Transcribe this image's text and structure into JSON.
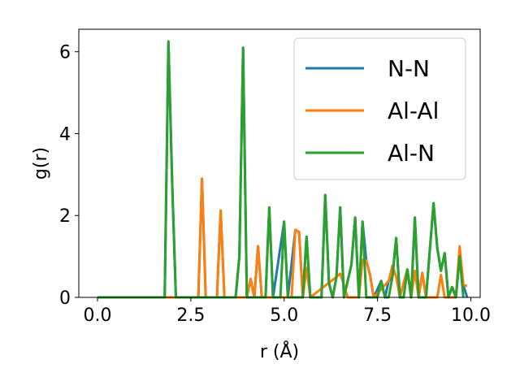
{
  "chart_data": {
    "type": "line",
    "xlabel": "r (Å)",
    "ylabel": "g(r)",
    "xlim": [
      -0.5,
      10.25
    ],
    "ylim": [
      0,
      6.55
    ],
    "xticks": [
      0.0,
      2.5,
      5.0,
      7.5,
      10.0
    ],
    "xtick_labels": [
      "0.0",
      "2.5",
      "5.0",
      "7.5",
      "10.0"
    ],
    "yticks": [
      0,
      2,
      4,
      6
    ],
    "ytick_labels": [
      "0",
      "2",
      "4",
      "6"
    ],
    "grid": false,
    "legend_position": "top-right",
    "series": [
      {
        "name": "N-N",
        "color": "#1f77b4",
        "points": [
          [
            0.0,
            0
          ],
          [
            1.8,
            0
          ],
          [
            1.9,
            6.25
          ],
          [
            2.0,
            2.8
          ],
          [
            2.1,
            0
          ],
          [
            2.7,
            0
          ],
          [
            2.8,
            2.9
          ],
          [
            2.9,
            0
          ],
          [
            3.2,
            0
          ],
          [
            3.3,
            2.12
          ],
          [
            3.4,
            0
          ],
          [
            3.7,
            0
          ],
          [
            3.8,
            1.0
          ],
          [
            3.9,
            6.1
          ],
          [
            4.0,
            0
          ],
          [
            4.1,
            0.45
          ],
          [
            4.2,
            0
          ],
          [
            4.3,
            1.25
          ],
          [
            4.4,
            0
          ],
          [
            4.5,
            0
          ],
          [
            4.6,
            2.2
          ],
          [
            4.7,
            0
          ],
          [
            5.0,
            1.85
          ],
          [
            5.1,
            0
          ],
          [
            5.3,
            1.65
          ],
          [
            5.4,
            1.6
          ],
          [
            5.5,
            0
          ],
          [
            5.6,
            1.48
          ],
          [
            5.7,
            0
          ],
          [
            6.0,
            0
          ],
          [
            6.1,
            2.5
          ],
          [
            6.2,
            0.35
          ],
          [
            6.3,
            0
          ],
          [
            6.4,
            0.5
          ],
          [
            6.5,
            2.2
          ],
          [
            6.6,
            0
          ],
          [
            6.8,
            0.8
          ],
          [
            6.9,
            1.95
          ],
          [
            7.0,
            0
          ],
          [
            7.1,
            1.85
          ],
          [
            7.2,
            0.9
          ],
          [
            7.3,
            0.55
          ],
          [
            7.4,
            0
          ],
          [
            7.6,
            0.4
          ],
          [
            7.7,
            0
          ],
          [
            7.8,
            0.4
          ],
          [
            7.9,
            0.5
          ],
          [
            8.0,
            1.45
          ],
          [
            8.1,
            0
          ],
          [
            8.2,
            0.35
          ],
          [
            8.3,
            0.68
          ],
          [
            8.4,
            0
          ],
          [
            8.5,
            1.95
          ],
          [
            8.6,
            0
          ],
          [
            8.7,
            0.6
          ],
          [
            8.8,
            0
          ],
          [
            9.0,
            2.3
          ],
          [
            9.1,
            1.2
          ],
          [
            9.2,
            0.65
          ],
          [
            9.3,
            1.08
          ],
          [
            9.4,
            0
          ],
          [
            9.5,
            0.25
          ],
          [
            9.6,
            0
          ],
          [
            9.7,
            1.0
          ],
          [
            9.8,
            0.3
          ],
          [
            9.9,
            0
          ]
        ]
      },
      {
        "name": "Al-Al",
        "color": "#ff7f0e",
        "points": [
          [
            0.0,
            0
          ],
          [
            2.7,
            0
          ],
          [
            2.8,
            2.9
          ],
          [
            2.9,
            0
          ],
          [
            3.2,
            0
          ],
          [
            3.3,
            2.12
          ],
          [
            3.4,
            0
          ],
          [
            4.0,
            0
          ],
          [
            4.1,
            0.45
          ],
          [
            4.2,
            0
          ],
          [
            4.3,
            1.25
          ],
          [
            4.4,
            0
          ],
          [
            5.2,
            0
          ],
          [
            5.3,
            1.65
          ],
          [
            5.4,
            1.6
          ],
          [
            5.5,
            0
          ],
          [
            5.6,
            0.72
          ],
          [
            5.7,
            0
          ],
          [
            6.4,
            0.5
          ],
          [
            6.5,
            0.58
          ],
          [
            6.6,
            0.3
          ],
          [
            6.7,
            0
          ],
          [
            7.0,
            0
          ],
          [
            7.1,
            0.92
          ],
          [
            7.2,
            0.9
          ],
          [
            7.3,
            0.55
          ],
          [
            7.4,
            0
          ],
          [
            7.8,
            0.4
          ],
          [
            7.9,
            0.78
          ],
          [
            8.0,
            0.5
          ],
          [
            8.1,
            0
          ],
          [
            8.2,
            0.35
          ],
          [
            8.3,
            0.68
          ],
          [
            8.4,
            0
          ],
          [
            8.5,
            0.65
          ],
          [
            8.6,
            0
          ],
          [
            8.7,
            0.6
          ],
          [
            8.8,
            0
          ],
          [
            9.1,
            0
          ],
          [
            9.2,
            0.55
          ],
          [
            9.3,
            0
          ],
          [
            9.6,
            0
          ],
          [
            9.7,
            1.25
          ],
          [
            9.8,
            0.3
          ],
          [
            9.9,
            0.28
          ]
        ]
      },
      {
        "name": "Al-N",
        "color": "#2ca02c",
        "points": [
          [
            0.0,
            0
          ],
          [
            1.8,
            0
          ],
          [
            1.9,
            6.25
          ],
          [
            2.0,
            2.8
          ],
          [
            2.1,
            0
          ],
          [
            3.7,
            0
          ],
          [
            3.8,
            1.0
          ],
          [
            3.9,
            6.1
          ],
          [
            4.0,
            0
          ],
          [
            4.5,
            0
          ],
          [
            4.6,
            2.2
          ],
          [
            4.7,
            0
          ],
          [
            4.9,
            0
          ],
          [
            5.0,
            1.85
          ],
          [
            5.1,
            0
          ],
          [
            5.5,
            0
          ],
          [
            5.6,
            1.48
          ],
          [
            5.7,
            0
          ],
          [
            6.0,
            0
          ],
          [
            6.1,
            2.5
          ],
          [
            6.2,
            0.35
          ],
          [
            6.3,
            0
          ],
          [
            6.4,
            0.5
          ],
          [
            6.5,
            2.2
          ],
          [
            6.6,
            0
          ],
          [
            6.8,
            0.8
          ],
          [
            6.9,
            1.95
          ],
          [
            7.0,
            0
          ],
          [
            7.1,
            1.85
          ],
          [
            7.2,
            0
          ],
          [
            7.5,
            0
          ],
          [
            7.6,
            0.4
          ],
          [
            7.7,
            0
          ],
          [
            7.8,
            0
          ],
          [
            7.9,
            0.5
          ],
          [
            8.0,
            1.45
          ],
          [
            8.1,
            0
          ],
          [
            8.2,
            0
          ],
          [
            8.3,
            0.68
          ],
          [
            8.4,
            0
          ],
          [
            8.5,
            1.95
          ],
          [
            8.6,
            0
          ],
          [
            8.7,
            0
          ],
          [
            8.8,
            0
          ],
          [
            9.0,
            2.3
          ],
          [
            9.1,
            1.2
          ],
          [
            9.2,
            0.65
          ],
          [
            9.3,
            1.08
          ],
          [
            9.4,
            0
          ],
          [
            9.5,
            0.25
          ],
          [
            9.6,
            0
          ],
          [
            9.7,
            1.0
          ],
          [
            9.8,
            0
          ]
        ]
      }
    ]
  }
}
